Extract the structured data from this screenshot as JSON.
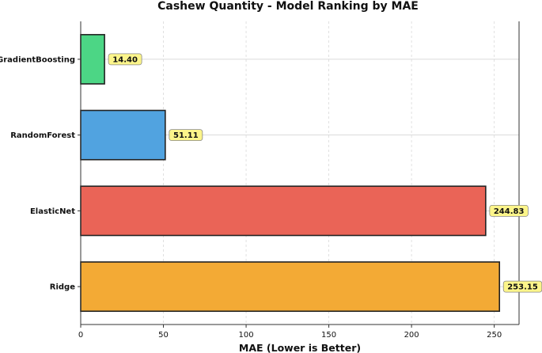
{
  "chart_data": {
    "type": "bar",
    "orientation": "horizontal",
    "title": "Cashew Quantity - Model Ranking by MAE",
    "xlabel": "MAE (Lower is Better)",
    "ylabel": "",
    "xlim": [
      0,
      265
    ],
    "xticks": [
      0,
      50,
      100,
      150,
      200,
      250
    ],
    "categories": [
      "GradientBoosting",
      "RandomForest",
      "ElasticNet",
      "Ridge"
    ],
    "values": [
      14.4,
      51.11,
      244.83,
      253.15
    ],
    "value_labels": [
      "14.40",
      "51.11",
      "244.83",
      "253.15"
    ],
    "colors": [
      "#4cd685",
      "#51a3e0",
      "#ea6457",
      "#f3aa35"
    ],
    "label_box_color": "#fcf58a",
    "grid": true,
    "legend": "none"
  }
}
